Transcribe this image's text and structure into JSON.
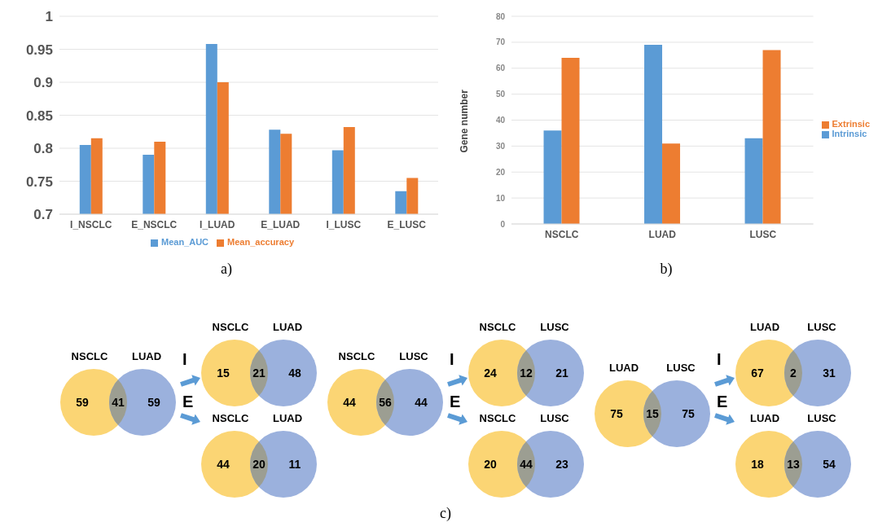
{
  "chart_data": [
    {
      "type": "bar",
      "categories": [
        "I_NSCLC",
        "E_NSCLC",
        "I_LUAD",
        "E_LUAD",
        "I_LUSC",
        "E_LUSC"
      ],
      "series": [
        {
          "name": "Mean_AUC",
          "color": "#5b9bd5",
          "values": [
            0.805,
            0.79,
            0.958,
            0.828,
            0.797,
            0.735
          ]
        },
        {
          "name": "Mean_accuracy",
          "color": "#ed7d31",
          "values": [
            0.815,
            0.81,
            0.9,
            0.822,
            0.832,
            0.755
          ]
        }
      ],
      "ylim": [
        0.7,
        1
      ],
      "yticks": [
        0.7,
        0.75,
        0.8,
        0.85,
        0.9,
        0.95,
        1
      ],
      "grid": "y",
      "legend": "bottom",
      "annotations": [
        "a)"
      ]
    },
    {
      "type": "bar",
      "categories": [
        "NSCLC",
        "LUAD",
        "LUSC"
      ],
      "series": [
        {
          "name": "Intrinsic",
          "color": "#5b9bd5",
          "values": [
            36,
            69,
            33
          ]
        },
        {
          "name": "Extrinsic",
          "color": "#ed7d31",
          "values": [
            64,
            31,
            67
          ]
        }
      ],
      "ylabel": "Gene number",
      "ylim": [
        0,
        80
      ],
      "yticks": [
        0,
        10,
        20,
        30,
        40,
        50,
        60,
        70,
        80
      ],
      "grid": "y",
      "legend": "right",
      "annotations": [
        "b)"
      ]
    },
    {
      "type": "other",
      "categories": [
        "NSCLC",
        null,
        "LUAD"
      ],
      "values": [
        59,
        41,
        59
      ],
      "data_labels": true,
      "colors": [
        "#fbd574",
        "#9c9e92",
        "#9bb1dd"
      ],
      "annotations": [
        "I",
        "E"
      ]
    },
    {
      "type": "other",
      "categories": [
        "NSCLC",
        null,
        "LUAD"
      ],
      "values": [
        15,
        21,
        48
      ],
      "data_labels": true,
      "colors": [
        "#fbd574",
        "#9c9e92",
        "#9bb1dd"
      ]
    },
    {
      "type": "other",
      "categories": [
        "NSCLC",
        null,
        "LUAD"
      ],
      "values": [
        44,
        20,
        11
      ],
      "data_labels": true,
      "colors": [
        "#fbd574",
        "#9c9e92",
        "#9bb1dd"
      ]
    },
    {
      "type": "other",
      "categories": [
        "NSCLC",
        null,
        "LUSC"
      ],
      "values": [
        44,
        56,
        44
      ],
      "data_labels": true,
      "colors": [
        "#fbd574",
        "#9c9e92",
        "#9bb1dd"
      ],
      "annotations": [
        "I",
        "E",
        "c)"
      ]
    },
    {
      "type": "other",
      "categories": [
        "NSCLC",
        null,
        "LUSC"
      ],
      "values": [
        24,
        12,
        21
      ],
      "data_labels": true,
      "colors": [
        "#fbd574",
        "#9c9e92",
        "#9bb1dd"
      ]
    },
    {
      "type": "other",
      "categories": [
        "NSCLC",
        null,
        "LUSC"
      ],
      "values": [
        20,
        44,
        23
      ],
      "data_labels": true,
      "colors": [
        "#fbd574",
        "#9c9e92",
        "#9bb1dd"
      ]
    },
    {
      "type": "other",
      "categories": [
        "LUAD",
        null,
        "LUSC"
      ],
      "values": [
        75,
        15,
        75
      ],
      "data_labels": true,
      "colors": [
        "#fbd574",
        "#9c9e92",
        "#9bb1dd"
      ],
      "annotations": [
        "I",
        "E"
      ]
    },
    {
      "type": "other",
      "categories": [
        "LUAD",
        null,
        "LUSC"
      ],
      "values": [
        67,
        2,
        31
      ],
      "data_labels": true,
      "colors": [
        "#fbd574",
        "#9c9e92",
        "#9bb1dd"
      ]
    },
    {
      "type": "other",
      "categories": [
        "LUAD",
        null,
        "LUSC"
      ],
      "values": [
        18,
        13,
        54
      ],
      "data_labels": true,
      "colors": [
        "#fbd574",
        "#9c9e92",
        "#9bb1dd"
      ]
    }
  ]
}
